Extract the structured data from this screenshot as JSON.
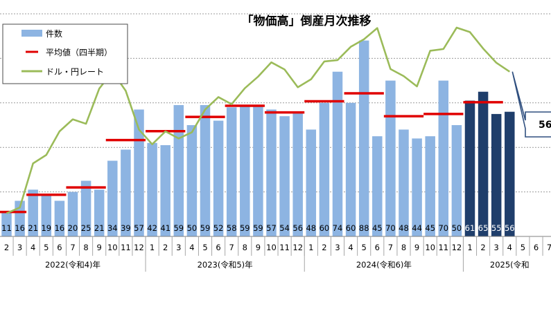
{
  "chart_data": {
    "type": "bar",
    "title": "「物価高」倒産月次推移",
    "legend": {
      "placement": "top-left",
      "items": [
        {
          "label": "件数",
          "kind": "bar"
        },
        {
          "label": "平均値（四半期）",
          "kind": "segment"
        },
        {
          "label": "ドル・円レート",
          "kind": "line"
        }
      ]
    },
    "months": [
      "2",
      "3",
      "4",
      "5",
      "6",
      "7",
      "8",
      "9",
      "10",
      "11",
      "12",
      "1",
      "2",
      "3",
      "4",
      "5",
      "6",
      "7",
      "8",
      "9",
      "10",
      "11",
      "12",
      "1",
      "2",
      "3",
      "4",
      "5",
      "6",
      "7",
      "8",
      "9",
      "10",
      "11",
      "12",
      "1",
      "2",
      "3",
      "4",
      "5",
      "6",
      "7"
    ],
    "year_labels": [
      {
        "label": "2022(令和4)年",
        "from": 0,
        "to": 10
      },
      {
        "label": "2023(令和5)年",
        "from": 11,
        "to": 22
      },
      {
        "label": "2024(令和6)年",
        "from": 23,
        "to": 34
      },
      {
        "label": "2025(令和",
        "from": 35,
        "to": 41
      }
    ],
    "series": [
      {
        "name": "件数",
        "values": [
          11,
          16,
          21,
          19,
          16,
          20,
          25,
          21,
          34,
          39,
          57,
          42,
          41,
          59,
          50,
          59,
          52,
          58,
          59,
          59,
          57,
          54,
          56,
          48,
          60,
          74,
          60,
          88,
          45,
          70,
          48,
          44,
          45,
          70,
          50,
          61,
          65,
          55,
          56,
          null,
          null,
          null
        ],
        "color": "#8db4e2",
        "highlight_color": "#1f3e6b",
        "highlight_from_index": 35
      },
      {
        "name": "平均値（四半期）",
        "color": "#e00000",
        "segments": [
          {
            "from": 0,
            "to": 1,
            "value": 11
          },
          {
            "from": 2,
            "to": 4,
            "value": 18.7
          },
          {
            "from": 5,
            "to": 7,
            "value": 22
          },
          {
            "from": 8,
            "to": 10,
            "value": 43.3
          },
          {
            "from": 11,
            "to": 13,
            "value": 47.3
          },
          {
            "from": 14,
            "to": 16,
            "value": 53.7
          },
          {
            "from": 17,
            "to": 19,
            "value": 58.7
          },
          {
            "from": 20,
            "to": 22,
            "value": 55.7
          },
          {
            "from": 23,
            "to": 25,
            "value": 60.7
          },
          {
            "from": 26,
            "to": 28,
            "value": 64.3
          },
          {
            "from": 29,
            "to": 31,
            "value": 54
          },
          {
            "from": 32,
            "to": 34,
            "value": 55
          },
          {
            "from": 35,
            "to": 37,
            "value": 60.3
          }
        ]
      },
      {
        "name": "ドル・円レート",
        "color": "#9bbb59",
        "values": [
          115.2,
          116.5,
          126.4,
          128.3,
          133.6,
          136.3,
          135.3,
          143.2,
          147.0,
          142.7,
          134.0,
          130.7,
          133.6,
          132.0,
          133.4,
          138.5,
          141.3,
          139.7,
          143.3,
          145.9,
          149.1,
          147.5,
          143.5,
          145.3,
          149.3,
          149.6,
          152.6,
          154.3,
          156.8,
          147.6,
          146.0,
          143.7,
          151.7,
          152.1,
          156.9,
          155.9,
          152.2,
          149.0,
          147.0,
          null,
          null,
          null
        ]
      }
    ],
    "y_range_count": [
      0,
      100
    ],
    "y_range_rate": [
      110,
      160
    ],
    "grid": true,
    "gridline_style": "dotted",
    "callout": {
      "value": "56",
      "anchor_index": 38
    }
  }
}
